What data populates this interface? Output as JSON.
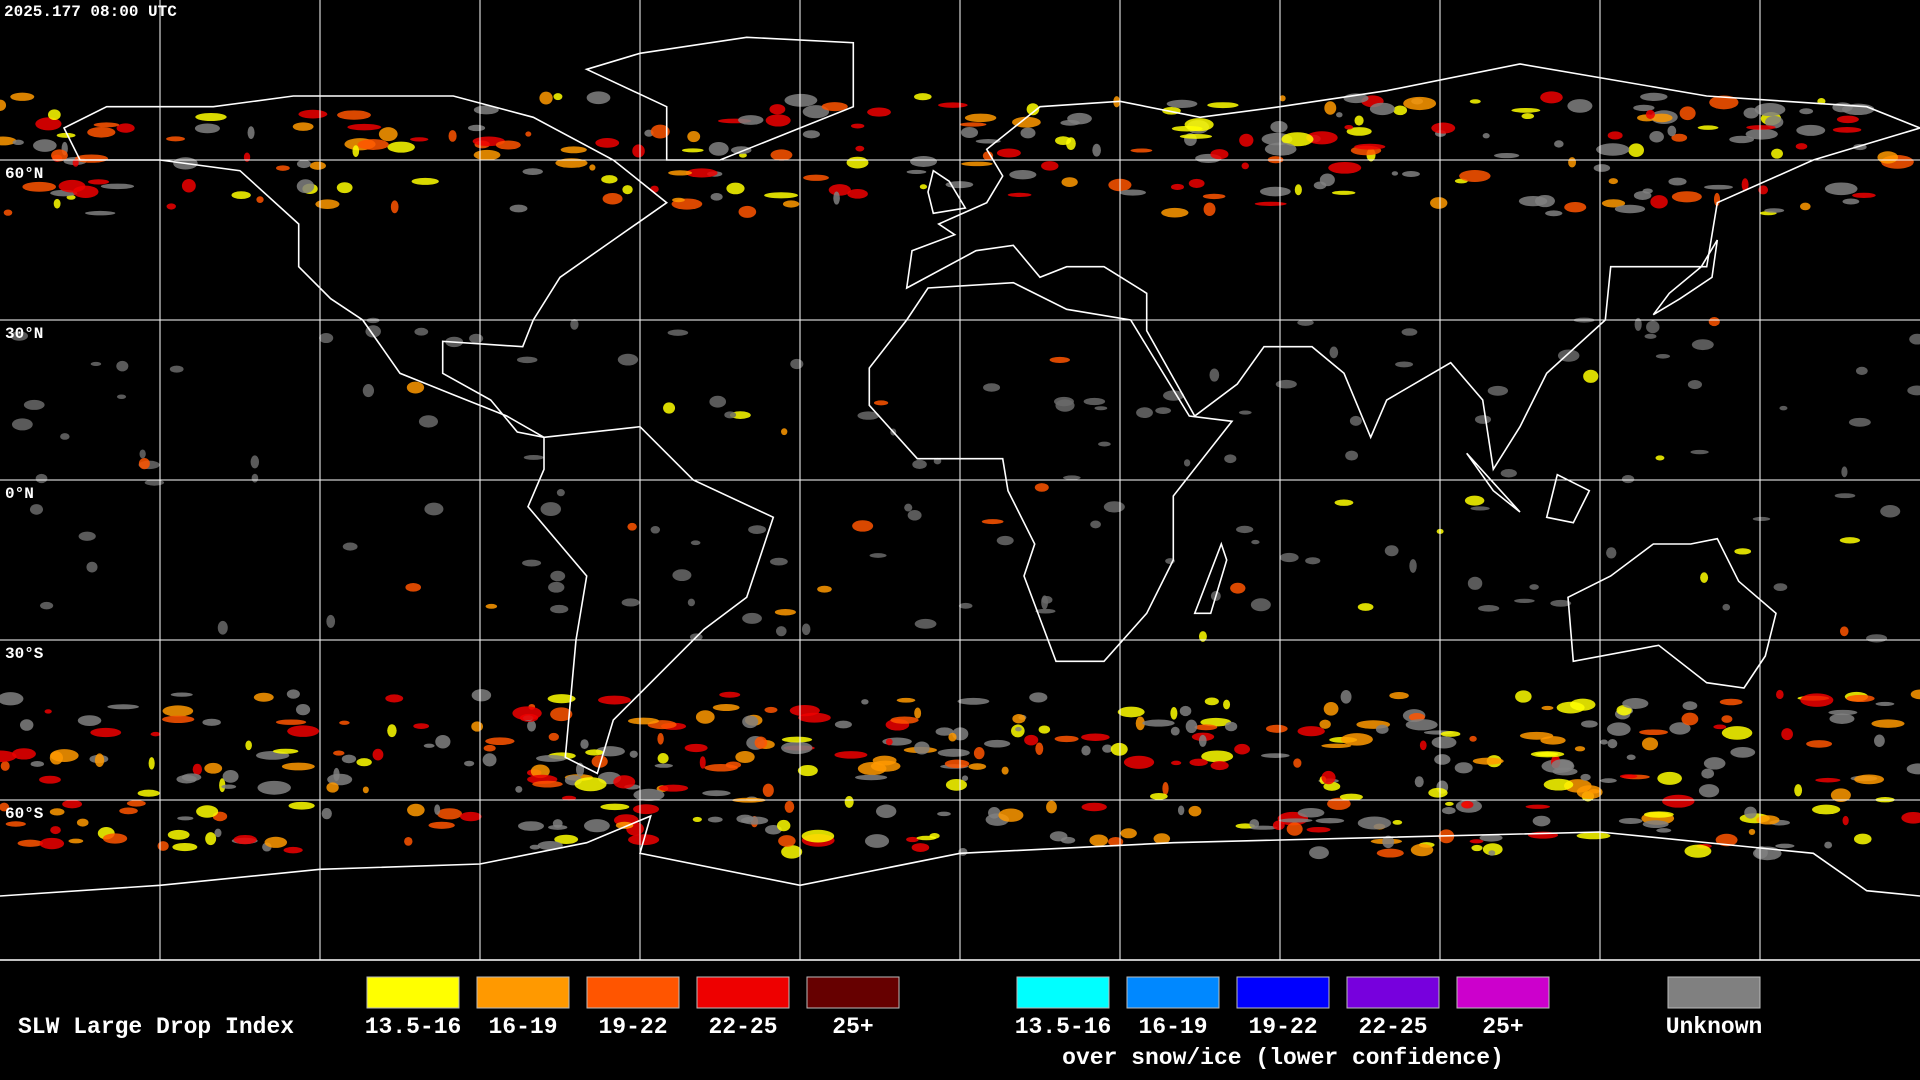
{
  "header": {
    "timestamp": "2025.177 08:00 UTC"
  },
  "map": {
    "latitude_labels": [
      "60°N",
      "30°N",
      "0°N",
      "30°S",
      "60°S"
    ]
  },
  "legend": {
    "title": "SLW Large Drop Index",
    "groups": [
      {
        "items": [
          {
            "label": "13.5-16",
            "color": "#ffff00"
          },
          {
            "label": "16-19",
            "color": "#ff9900"
          },
          {
            "label": "19-22",
            "color": "#ff5500"
          },
          {
            "label": "22-25",
            "color": "#ee0000"
          },
          {
            "label": "25+",
            "color": "#660000"
          }
        ]
      },
      {
        "items": [
          {
            "label": "13.5-16",
            "color": "#00ffff"
          },
          {
            "label": "16-19",
            "color": "#0088ff"
          },
          {
            "label": "19-22",
            "color": "#0000ff"
          },
          {
            "label": "22-25",
            "color": "#7700dd"
          },
          {
            "label": "25+",
            "color": "#cc00cc"
          }
        ],
        "caption": "over snow/ice (lower confidence)"
      },
      {
        "items": [
          {
            "label": "Unknown",
            "color": "#808080"
          }
        ]
      }
    ]
  }
}
